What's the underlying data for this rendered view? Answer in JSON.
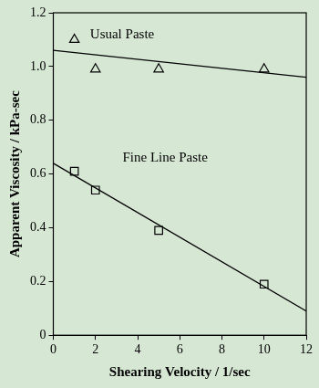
{
  "chart_data": {
    "type": "scatter",
    "x_label": "Shearing Velocity / 1/sec",
    "y_label": "Apparent Viscosity / kPa-sec",
    "xlim": [
      0,
      12
    ],
    "xticks": [
      0,
      2,
      4,
      6,
      8,
      10,
      12
    ],
    "ylim": [
      0,
      1.2
    ],
    "yticks": [
      0,
      0.2,
      0.4,
      0.6,
      0.8,
      {
        "value": 1,
        "label": "1.0"
      },
      1.2
    ],
    "grid": false,
    "series": [
      {
        "name": "Usual Paste",
        "color": "#000000",
        "marker": "triangle",
        "x": [
          1,
          2,
          5,
          10
        ],
        "values": [
          1.1,
          0.99,
          0.99,
          0.99
        ],
        "trend": {
          "x": [
            0,
            12
          ],
          "values": [
            1.06,
            0.96
          ],
          "line_style": "solid"
        }
      },
      {
        "name": "Fine Line Paste",
        "color": "#000000",
        "marker": "square",
        "x": [
          1,
          2,
          5,
          10
        ],
        "values": [
          0.61,
          0.54,
          0.39,
          0.19
        ],
        "trend": {
          "x": [
            0,
            12
          ],
          "values": [
            0.64,
            0.09
          ],
          "line_style": "solid"
        }
      }
    ]
  }
}
